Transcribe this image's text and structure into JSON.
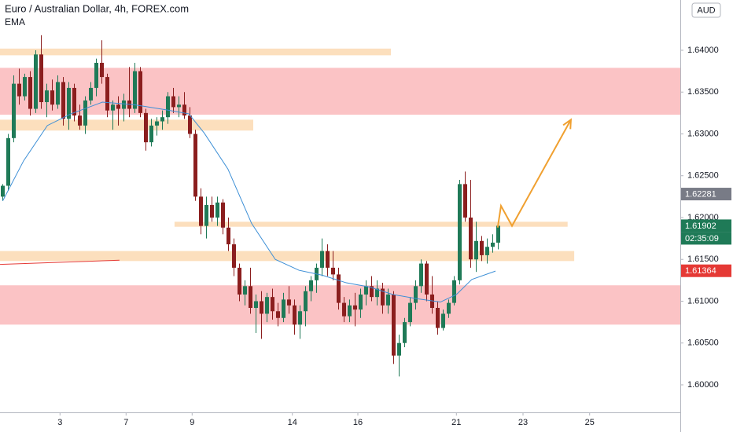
{
  "chart_data": {
    "type": "candlestick",
    "title": "Euro / Australian Dollar, 4h, FOREX.com",
    "subtitle": "EMA",
    "currency": "AUD",
    "up_color": "#1f7a57",
    "down_color": "#8b1e1e",
    "xlim": [
      -0.5,
      123.07
    ],
    "ylim": [
      1.59671,
      1.64601
    ],
    "yticks": [
      {
        "value": 1.6,
        "label": "1.60000"
      },
      {
        "value": 1.605,
        "label": "1.60500"
      },
      {
        "value": 1.61,
        "label": "1.61000"
      },
      {
        "value": 1.615,
        "label": "1.61500"
      },
      {
        "value": 1.62,
        "label": "1.62000"
      },
      {
        "value": 1.625,
        "label": "1.62500"
      },
      {
        "value": 1.63,
        "label": "1.63000"
      },
      {
        "value": 1.635,
        "label": "1.63500"
      },
      {
        "value": 1.64,
        "label": "1.64000"
      }
    ],
    "xticks": [
      {
        "value": 10.4,
        "label": "3"
      },
      {
        "value": 22.4,
        "label": "7"
      },
      {
        "value": 34.4,
        "label": "9"
      },
      {
        "value": 52.6,
        "label": "14"
      },
      {
        "value": 64.5,
        "label": "16"
      },
      {
        "value": 82.4,
        "label": "21"
      },
      {
        "value": 94.5,
        "label": "23"
      },
      {
        "value": 106.6,
        "label": "25"
      }
    ],
    "candles": [
      [
        1.6225,
        1.624,
        1.622,
        1.6238
      ],
      [
        1.6238,
        1.63,
        1.6232,
        1.6295
      ],
      [
        1.6295,
        1.637,
        1.629,
        1.636
      ],
      [
        1.636,
        1.6378,
        1.6335,
        1.6345
      ],
      [
        1.6345,
        1.6372,
        1.634,
        1.6368
      ],
      [
        1.6368,
        1.6375,
        1.6322,
        1.633
      ],
      [
        1.633,
        1.64,
        1.6325,
        1.6395
      ],
      [
        1.6395,
        1.6418,
        1.633,
        1.6338
      ],
      [
        1.6338,
        1.636,
        1.632,
        1.6352
      ],
      [
        1.6352,
        1.6365,
        1.6328,
        1.6335
      ],
      [
        1.6335,
        1.637,
        1.633,
        1.6362
      ],
      [
        1.6362,
        1.6368,
        1.631,
        1.6318
      ],
      [
        1.6318,
        1.6362,
        1.6305,
        1.6355
      ],
      [
        1.6355,
        1.636,
        1.6315,
        1.6322
      ],
      [
        1.6322,
        1.6335,
        1.6305,
        1.631
      ],
      [
        1.631,
        1.6345,
        1.63,
        1.634
      ],
      [
        1.634,
        1.6362,
        1.6335,
        1.6355
      ],
      [
        1.6355,
        1.639,
        1.6345,
        1.6385
      ],
      [
        1.6385,
        1.6412,
        1.636,
        1.6368
      ],
      [
        1.6368,
        1.6372,
        1.632,
        1.6328
      ],
      [
        1.6328,
        1.634,
        1.6305,
        1.6335
      ],
      [
        1.6335,
        1.6345,
        1.631,
        1.633
      ],
      [
        1.633,
        1.6348,
        1.6315,
        1.634
      ],
      [
        1.634,
        1.638,
        1.632,
        1.633
      ],
      [
        1.633,
        1.6385,
        1.6325,
        1.6375
      ],
      [
        1.6375,
        1.638,
        1.632,
        1.6325
      ],
      [
        1.6325,
        1.633,
        1.628,
        1.629
      ],
      [
        1.629,
        1.6318,
        1.6285,
        1.631
      ],
      [
        1.631,
        1.632,
        1.6298,
        1.6315
      ],
      [
        1.6315,
        1.6328,
        1.6305,
        1.632
      ],
      [
        1.632,
        1.635,
        1.6312,
        1.6345
      ],
      [
        1.6345,
        1.6355,
        1.6325,
        1.6332
      ],
      [
        1.6332,
        1.6345,
        1.632,
        1.6335
      ],
      [
        1.6335,
        1.635,
        1.6318,
        1.6322
      ],
      [
        1.6322,
        1.6332,
        1.6295,
        1.63
      ],
      [
        1.63,
        1.6305,
        1.622,
        1.6225
      ],
      [
        1.6225,
        1.6235,
        1.618,
        1.619
      ],
      [
        1.619,
        1.6225,
        1.6175,
        1.6215
      ],
      [
        1.6215,
        1.6225,
        1.6195,
        1.62
      ],
      [
        1.62,
        1.6225,
        1.619,
        1.6218
      ],
      [
        1.6218,
        1.6222,
        1.618,
        1.6188
      ],
      [
        1.6188,
        1.62,
        1.616,
        1.6168
      ],
      [
        1.6168,
        1.6175,
        1.613,
        1.614
      ],
      [
        1.614,
        1.6145,
        1.61,
        1.6108
      ],
      [
        1.6108,
        1.6125,
        1.6095,
        1.6118
      ],
      [
        1.6118,
        1.614,
        1.6085,
        1.6092
      ],
      [
        1.6092,
        1.6108,
        1.6062,
        1.61
      ],
      [
        1.61,
        1.6112,
        1.6055,
        1.6085
      ],
      [
        1.6085,
        1.611,
        1.6075,
        1.6105
      ],
      [
        1.6105,
        1.6115,
        1.6078,
        1.6088
      ],
      [
        1.6088,
        1.6098,
        1.607,
        1.608
      ],
      [
        1.608,
        1.611,
        1.6075,
        1.6102
      ],
      [
        1.6102,
        1.6118,
        1.6085,
        1.6095
      ],
      [
        1.6095,
        1.6102,
        1.606,
        1.6072
      ],
      [
        1.6072,
        1.6095,
        1.6055,
        1.6088
      ],
      [
        1.6088,
        1.6118,
        1.607,
        1.6112
      ],
      [
        1.6112,
        1.613,
        1.61,
        1.6125
      ],
      [
        1.6125,
        1.6145,
        1.611,
        1.614
      ],
      [
        1.614,
        1.6175,
        1.613,
        1.616
      ],
      [
        1.616,
        1.6168,
        1.613,
        1.614
      ],
      [
        1.614,
        1.616,
        1.6125,
        1.6132
      ],
      [
        1.6132,
        1.614,
        1.609,
        1.6098
      ],
      [
        1.6098,
        1.6105,
        1.6075,
        1.6082
      ],
      [
        1.6082,
        1.6102,
        1.6075,
        1.6095
      ],
      [
        1.6095,
        1.611,
        1.607,
        1.609
      ],
      [
        1.609,
        1.6115,
        1.608,
        1.6108
      ],
      [
        1.6108,
        1.6125,
        1.6095,
        1.6118
      ],
      [
        1.6118,
        1.613,
        1.61,
        1.6105
      ],
      [
        1.6105,
        1.6125,
        1.6095,
        1.6115
      ],
      [
        1.6115,
        1.6122,
        1.6085,
        1.6095
      ],
      [
        1.6095,
        1.6115,
        1.6085,
        1.6108
      ],
      [
        1.6108,
        1.6112,
        1.6025,
        1.6035
      ],
      [
        1.6035,
        1.606,
        1.601,
        1.605
      ],
      [
        1.605,
        1.608,
        1.6045,
        1.6075
      ],
      [
        1.6075,
        1.6105,
        1.607,
        1.6098
      ],
      [
        1.6098,
        1.6125,
        1.609,
        1.6118
      ],
      [
        1.6118,
        1.615,
        1.611,
        1.6145
      ],
      [
        1.6145,
        1.6148,
        1.61,
        1.6108
      ],
      [
        1.6108,
        1.613,
        1.6085,
        1.6092
      ],
      [
        1.6092,
        1.61,
        1.606,
        1.6068
      ],
      [
        1.6068,
        1.609,
        1.6065,
        1.6085
      ],
      [
        1.6085,
        1.6102,
        1.608,
        1.6098
      ],
      [
        1.6098,
        1.613,
        1.6095,
        1.6125
      ],
      [
        1.6125,
        1.6245,
        1.612,
        1.624
      ],
      [
        1.624,
        1.6255,
        1.6195,
        1.62
      ],
      [
        1.62,
        1.6245,
        1.614,
        1.615
      ],
      [
        1.615,
        1.6195,
        1.6135,
        1.6172
      ],
      [
        1.6172,
        1.6178,
        1.6148,
        1.6155
      ],
      [
        1.6155,
        1.6175,
        1.6145,
        1.6165
      ],
      [
        1.6165,
        1.618,
        1.6158,
        1.617
      ],
      [
        1.617,
        1.6195,
        1.6162,
        1.61902
      ]
    ],
    "ema": {
      "color": "#3d8fd6",
      "x": [
        0,
        3.8,
        8.1,
        12.4,
        18.1,
        23.8,
        29.5,
        33.8,
        36.6,
        40.9,
        45.2,
        49.5,
        53.8,
        58.1,
        62.4,
        66.6,
        70.9,
        75.2,
        79.5,
        82.4,
        85.2,
        89.5
      ],
      "values": [
        1.622,
        1.6268,
        1.631,
        1.6324,
        1.6338,
        1.6335,
        1.6329,
        1.6324,
        1.6301,
        1.6258,
        1.6193,
        1.615,
        1.6137,
        1.6131,
        1.6122,
        1.6117,
        1.6108,
        1.6103,
        1.6099,
        1.6108,
        1.6126,
        1.6136
      ]
    },
    "zones": [
      {
        "color": "#fbbcbf",
        "x": [
          -0.5,
          123.07
        ],
        "y": [
          1.6323,
          1.6379
        ]
      },
      {
        "color": "#fbbcbf",
        "x": [
          -0.5,
          123.07
        ],
        "y": [
          1.6072,
          1.6119
        ]
      },
      {
        "color": "#fcdcb6",
        "x": [
          -0.5,
          70.5
        ],
        "y": [
          1.6394,
          1.6402
        ]
      },
      {
        "color": "#fcdcb6",
        "x": [
          -0.5,
          45.5
        ],
        "y": [
          1.6304,
          1.6317
        ]
      },
      {
        "color": "#fcdcb6",
        "x": [
          31.2,
          102.6
        ],
        "y": [
          1.6189,
          1.6195
        ]
      },
      {
        "color": "#fcdcb6",
        "x": [
          -0.5,
          103.8
        ],
        "y": [
          1.6148,
          1.616
        ]
      }
    ],
    "lines": [
      {
        "color": "#e53935",
        "x": [
          -0.5,
          21.2
        ],
        "y": [
          1.6144,
          1.6149
        ]
      },
      {
        "color": "#f0a030",
        "x": [
          89.9,
          90.5,
          92.5,
          103.2
        ],
        "y": [
          1.6188,
          1.6214,
          1.619,
          1.6317
        ],
        "arrow": true
      }
    ],
    "price_labels": [
      {
        "value": 1.62281,
        "color": "#787b86"
      },
      {
        "value": 1.61902,
        "color": "#1f7a57",
        "countdown": "02:35:09"
      },
      {
        "value": 1.61364,
        "color": "#e53935"
      }
    ]
  }
}
